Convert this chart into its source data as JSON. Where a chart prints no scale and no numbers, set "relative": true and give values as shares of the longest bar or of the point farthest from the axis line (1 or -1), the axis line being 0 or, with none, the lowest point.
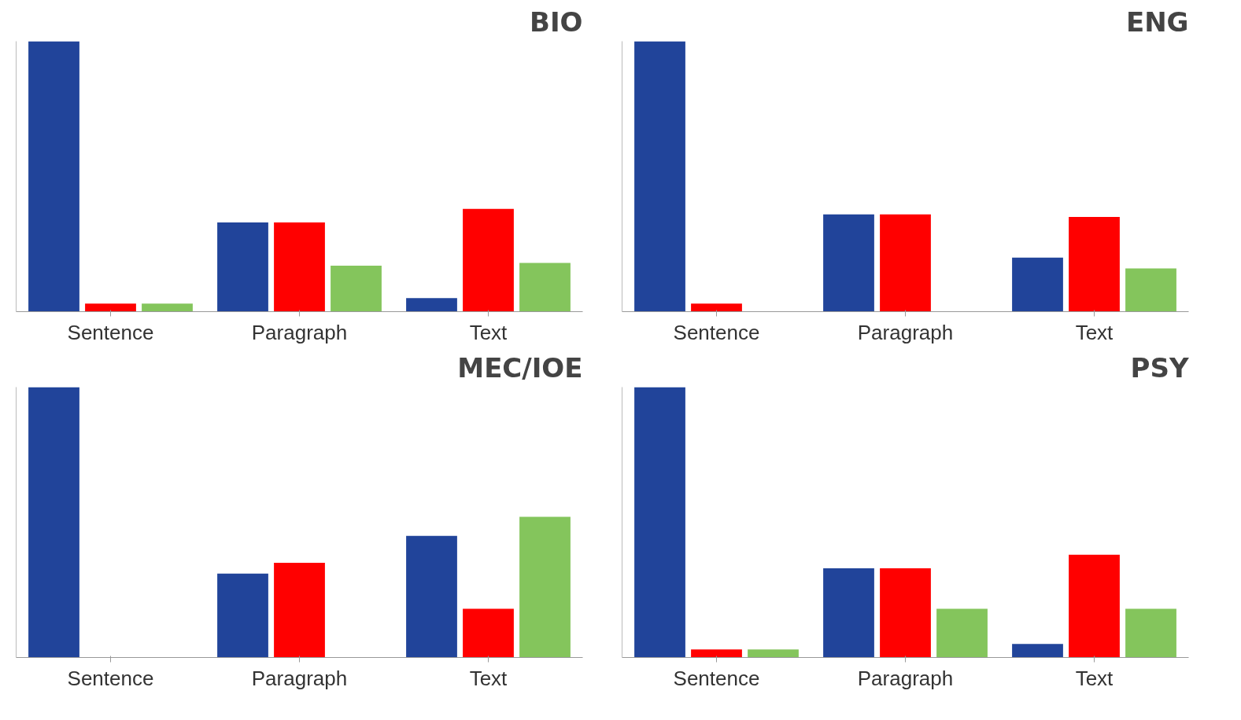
{
  "chart_data": [
    {
      "type": "bar",
      "title": "BIO",
      "categories": [
        "Sentence",
        "Paragraph",
        "Text"
      ],
      "relative": true,
      "grid": false,
      "series": [
        {
          "color": "#21449a",
          "values": [
            1,
            0.33,
            0.05
          ]
        },
        {
          "color": "#ff0000",
          "values": [
            0.03,
            0.33,
            0.38
          ]
        },
        {
          "color": "#84c55c",
          "values": [
            0.03,
            0.17,
            0.18
          ]
        }
      ]
    },
    {
      "type": "bar",
      "title": "ENG",
      "categories": [
        "Sentence",
        "Paragraph",
        "Text"
      ],
      "relative": true,
      "grid": false,
      "series": [
        {
          "color": "#21449a",
          "values": [
            1,
            0.36,
            0.2
          ]
        },
        {
          "color": "#ff0000",
          "values": [
            0.03,
            0.36,
            0.35
          ]
        },
        {
          "color": "#84c55c",
          "values": [
            0,
            0,
            0.16
          ]
        }
      ]
    },
    {
      "type": "bar",
      "title": "MEC/IOE",
      "categories": [
        "Sentence",
        "Paragraph",
        "Text"
      ],
      "relative": true,
      "grid": false,
      "series": [
        {
          "color": "#21449a",
          "values": [
            1,
            0.31,
            0.45
          ]
        },
        {
          "color": "#ff0000",
          "values": [
            0,
            0.35,
            0.18
          ]
        },
        {
          "color": "#84c55c",
          "values": [
            0,
            0,
            0.52
          ]
        }
      ]
    },
    {
      "type": "bar",
      "title": "PSY",
      "categories": [
        "Sentence",
        "Paragraph",
        "Text"
      ],
      "relative": true,
      "grid": false,
      "series": [
        {
          "color": "#21449a",
          "values": [
            1,
            0.33,
            0.05
          ]
        },
        {
          "color": "#ff0000",
          "values": [
            0.03,
            0.33,
            0.38
          ]
        },
        {
          "color": "#84c55c",
          "values": [
            0.03,
            0.18,
            0.18
          ]
        }
      ]
    }
  ]
}
